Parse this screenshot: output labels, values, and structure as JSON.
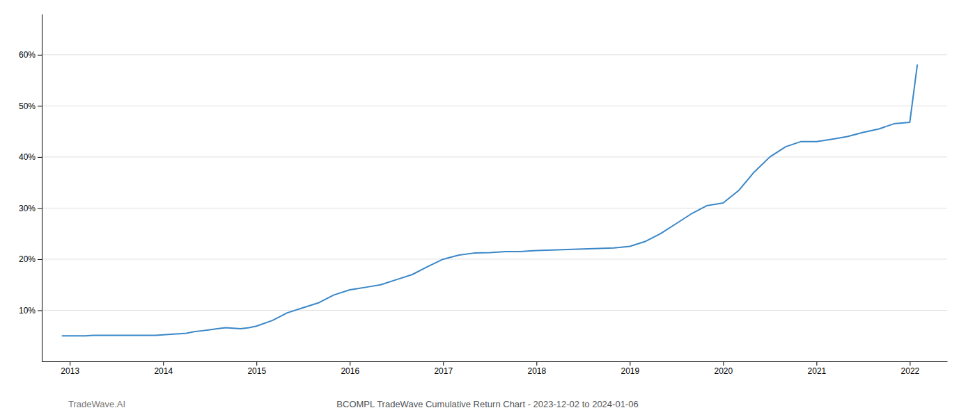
{
  "chart_data": {
    "type": "line",
    "title": "BCOMPL TradeWave Cumulative Return Chart - 2023-12-02 to 2024-01-06",
    "annotations": [
      "TradeWave.AI"
    ],
    "color": "#3a87c8",
    "grid": "y",
    "x": [
      2012.92,
      2013.0,
      2013.08,
      2013.17,
      2013.25,
      2013.33,
      2013.42,
      2013.5,
      2013.58,
      2013.67,
      2013.75,
      2013.83,
      2013.92,
      2014.0,
      2014.08,
      2014.17,
      2014.25,
      2014.33,
      2014.42,
      2014.5,
      2014.58,
      2014.67,
      2014.75,
      2014.83,
      2014.92,
      2015.0,
      2015.17,
      2015.33,
      2015.5,
      2015.67,
      2015.83,
      2016.0,
      2016.17,
      2016.33,
      2016.5,
      2016.67,
      2016.83,
      2017.0,
      2017.17,
      2017.33,
      2017.5,
      2017.67,
      2017.83,
      2018.0,
      2018.17,
      2018.33,
      2018.5,
      2018.67,
      2018.83,
      2019.0,
      2019.17,
      2019.33,
      2019.5,
      2019.67,
      2019.83,
      2020.0,
      2020.17,
      2020.33,
      2020.5,
      2020.67,
      2020.83,
      2021.0,
      2021.17,
      2021.33,
      2021.5,
      2021.67,
      2021.83,
      2022.0,
      2022.08
    ],
    "values": [
      5.0,
      5.0,
      5.0,
      5.0,
      5.1,
      5.1,
      5.1,
      5.1,
      5.1,
      5.1,
      5.1,
      5.1,
      5.1,
      5.2,
      5.3,
      5.4,
      5.5,
      5.8,
      6.0,
      6.2,
      6.4,
      6.6,
      6.5,
      6.4,
      6.6,
      6.9,
      8.0,
      9.5,
      10.5,
      11.5,
      13.0,
      14.0,
      14.5,
      15.0,
      16.0,
      17.0,
      18.5,
      20.0,
      20.8,
      21.2,
      21.3,
      21.5,
      21.5,
      21.7,
      21.8,
      21.9,
      22.0,
      22.1,
      22.2,
      22.5,
      23.5,
      25.0,
      27.0,
      29.0,
      30.5,
      31.0,
      33.5,
      37.0,
      40.0,
      42.0,
      43.0,
      43.0,
      43.5,
      44.0,
      44.8,
      45.5,
      46.5,
      46.8,
      58.0
    ],
    "xlim": [
      2012.7,
      2022.4
    ],
    "xticks": [
      2013,
      2014,
      2015,
      2016,
      2017,
      2018,
      2019,
      2020,
      2021,
      2022
    ],
    "ylim": [
      0,
      68
    ],
    "yticks": [
      {
        "value": 10,
        "label": "10%"
      },
      {
        "value": 20,
        "label": "20%"
      },
      {
        "value": 30,
        "label": "30%"
      },
      {
        "value": 40,
        "label": "40%"
      },
      {
        "value": 50,
        "label": "50%"
      },
      {
        "value": 60,
        "label": "60%"
      }
    ]
  }
}
